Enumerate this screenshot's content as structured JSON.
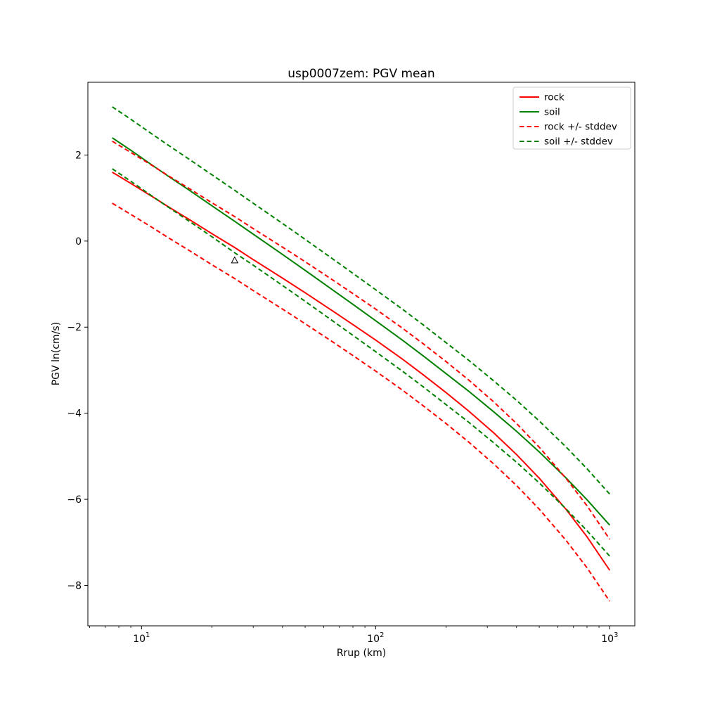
{
  "figure": {
    "title": "usp0007zem: PGV mean",
    "xlabel": "Rrup (km)",
    "ylabel": "PGV ln(cm/s)"
  },
  "chart_data": {
    "type": "line",
    "title": "usp0007zem: PGV mean",
    "xlabel": "Rrup (km)",
    "ylabel": "PGV ln(cm/s)",
    "x_scale": "log",
    "y_scale": "linear",
    "grid": false,
    "legend_position": "upper right",
    "xlim": [
      5.9,
      1280
    ],
    "ylim": [
      -8.94,
      3.69
    ],
    "x_ticks": [
      10,
      100,
      1000
    ],
    "x_tick_labels": [
      "10^1",
      "10^2",
      "10^3"
    ],
    "y_ticks": [
      2,
      0,
      -2,
      -4,
      -6,
      -8
    ],
    "stddev": 0.72,
    "x": [
      7.5,
      9,
      11,
      13,
      16,
      20,
      25,
      30,
      40,
      50,
      65,
      80,
      100,
      130,
      160,
      200,
      250,
      320,
      400,
      500,
      650,
      800,
      1000
    ],
    "series": [
      {
        "name": "rock",
        "color": "#ff0000",
        "style": "solid",
        "values": [
          1.6,
          1.34,
          1.05,
          0.8,
          0.5,
          0.17,
          -0.15,
          -0.43,
          -0.86,
          -1.2,
          -1.61,
          -1.94,
          -2.3,
          -2.74,
          -3.11,
          -3.52,
          -3.95,
          -4.46,
          -4.96,
          -5.51,
          -6.23,
          -6.87,
          -7.65
        ]
      },
      {
        "name": "soil",
        "color": "#008000",
        "style": "solid",
        "values": [
          2.4,
          2.11,
          1.78,
          1.51,
          1.18,
          0.82,
          0.46,
          0.16,
          -0.31,
          -0.68,
          -1.12,
          -1.47,
          -1.85,
          -2.3,
          -2.67,
          -3.08,
          -3.49,
          -3.97,
          -4.42,
          -4.9,
          -5.5,
          -6.01,
          -6.6
        ]
      },
      {
        "name": "rock +/- stddev",
        "color": "#ff0000",
        "style": "dashed",
        "values_upper": [
          2.32,
          2.06,
          1.77,
          1.52,
          1.22,
          0.89,
          0.57,
          0.29,
          -0.14,
          -0.48,
          -0.89,
          -1.22,
          -1.58,
          -2.02,
          -2.39,
          -2.8,
          -3.23,
          -3.74,
          -4.24,
          -4.79,
          -5.51,
          -6.15,
          -6.93
        ],
        "values_lower": [
          0.88,
          0.62,
          0.33,
          0.08,
          -0.22,
          -0.55,
          -0.87,
          -1.15,
          -1.58,
          -1.92,
          -2.33,
          -2.66,
          -3.02,
          -3.46,
          -3.83,
          -4.24,
          -4.67,
          -5.18,
          -5.68,
          -6.23,
          -6.95,
          -7.59,
          -8.37
        ]
      },
      {
        "name": "soil +/- stddev",
        "color": "#008000",
        "style": "dashed",
        "values_upper": [
          3.12,
          2.83,
          2.5,
          2.23,
          1.9,
          1.54,
          1.18,
          0.88,
          0.41,
          0.04,
          -0.4,
          -0.75,
          -1.13,
          -1.58,
          -1.95,
          -2.36,
          -2.77,
          -3.25,
          -3.7,
          -4.18,
          -4.78,
          -5.29,
          -5.88
        ],
        "values_lower": [
          1.68,
          1.39,
          1.06,
          0.79,
          0.46,
          0.1,
          -0.27,
          -0.56,
          -1.03,
          -1.4,
          -1.84,
          -2.19,
          -2.57,
          -3.02,
          -3.39,
          -3.8,
          -4.21,
          -4.69,
          -5.14,
          -5.62,
          -6.22,
          -6.73,
          -7.32
        ]
      }
    ],
    "marker_point": {
      "x": 25,
      "y": -0.45,
      "marker": "triangle",
      "filled": false,
      "edge_color": "#000000"
    },
    "legend_entries": [
      "rock",
      "soil",
      "rock +/- stddev",
      "soil +/- stddev"
    ]
  }
}
